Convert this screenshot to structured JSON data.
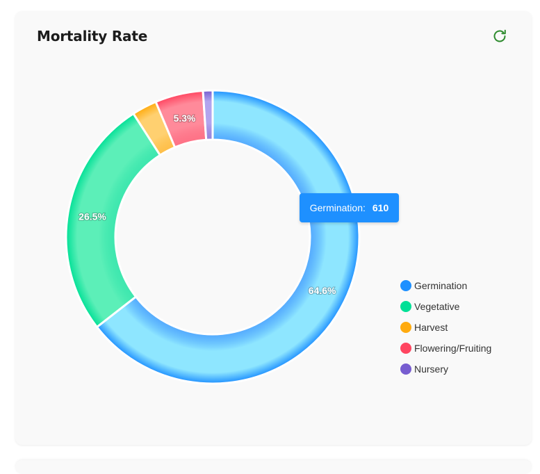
{
  "card": {
    "title": "Mortality Rate",
    "refresh_icon": "refresh-icon",
    "refresh_color": "#2e8b2e"
  },
  "chart_data": {
    "type": "pie",
    "variant": "donut",
    "categories": [
      "Germination",
      "Vegetative",
      "Harvest",
      "Flowering/Fruiting",
      "Nursery"
    ],
    "values": [
      610,
      250,
      26,
      50,
      10
    ],
    "percent_labels": [
      "64.6%",
      "26.5%",
      "",
      "5.3%",
      ""
    ],
    "colors": [
      "#1e90ff",
      "#00e096",
      "#ffab0f",
      "#ff4560",
      "#775dd0"
    ],
    "legend_placement": "right",
    "tooltip": {
      "label": "Germination:",
      "value": "610"
    }
  }
}
